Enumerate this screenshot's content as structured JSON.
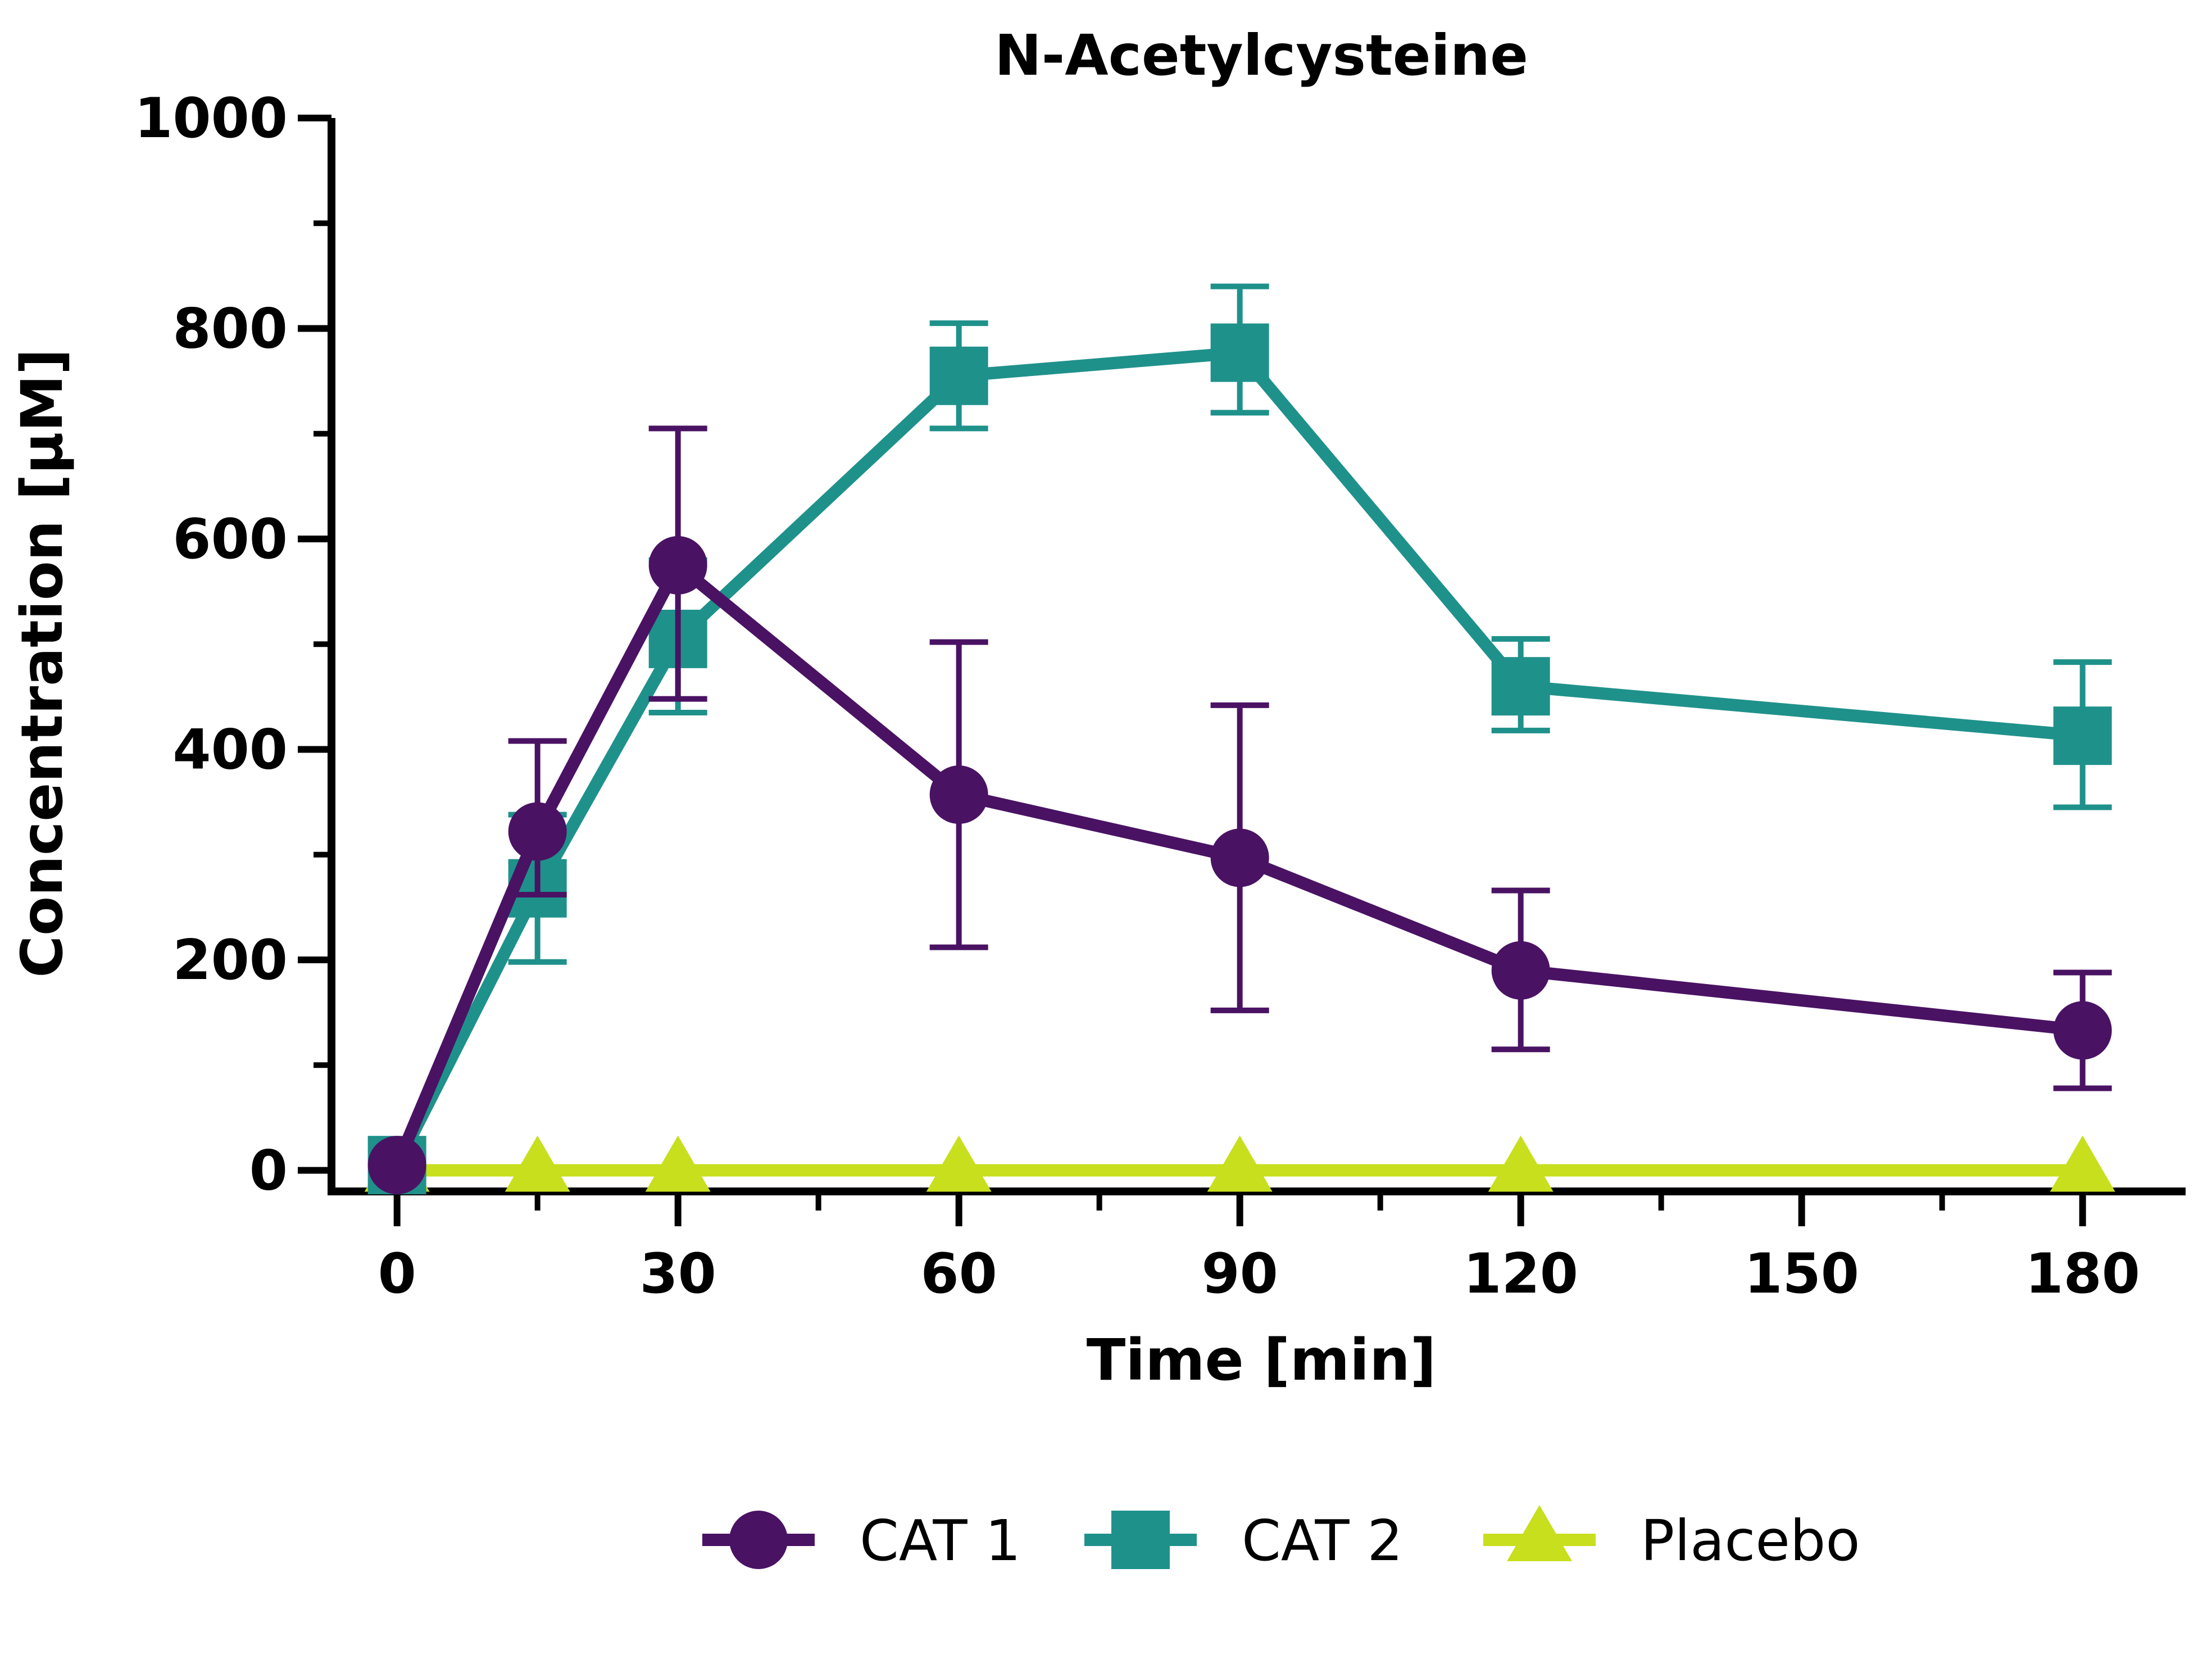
{
  "chart_data": {
    "type": "line",
    "title": "N-Acetylcysteine",
    "xlabel": "Time [min]",
    "ylabel": "Concentration [µM]",
    "xlim": [
      -7,
      191
    ],
    "ylim": [
      -20,
      1000
    ],
    "x_ticks": [
      0,
      30,
      60,
      90,
      120,
      150,
      180
    ],
    "x_minor_ticks": [
      15,
      45,
      75,
      105,
      135,
      165
    ],
    "y_ticks": [
      0,
      200,
      400,
      600,
      800,
      1000
    ],
    "y_minor_ticks": [
      100,
      300,
      500,
      700,
      900
    ],
    "x_tick_labels": [
      "0",
      "30",
      "60",
      "90",
      "120",
      "150",
      "180"
    ],
    "y_tick_labels": [
      "0",
      "200",
      "400",
      "600",
      "800",
      "1000"
    ],
    "grid": false,
    "legend_position": "bottom",
    "series": [
      {
        "name": "CAT 1",
        "color": "#4a1263",
        "marker": "circle",
        "x": [
          0,
          15,
          30,
          60,
          90,
          120,
          180
        ],
        "y": [
          5,
          322,
          575,
          357,
          297,
          190,
          133
        ],
        "error_low": [
          5,
          262,
          448,
          212,
          152,
          115,
          78
        ],
        "error_high": [
          5,
          408,
          705,
          502,
          442,
          266,
          188
        ]
      },
      {
        "name": "CAT 2",
        "color": "#1f918b",
        "marker": "square",
        "x": [
          0,
          15,
          30,
          60,
          90,
          120,
          180
        ],
        "y": [
          5,
          268,
          505,
          755,
          777,
          460,
          413
        ],
        "error_low": [
          5,
          198,
          435,
          705,
          720,
          418,
          345
        ],
        "error_high": [
          5,
          338,
          580,
          805,
          840,
          505,
          483
        ]
      },
      {
        "name": "Placebo",
        "color": "#c7df1d",
        "marker": "triangle",
        "x": [
          0,
          15,
          30,
          60,
          90,
          120,
          180
        ],
        "y": [
          0,
          0,
          0,
          0,
          0,
          0,
          0
        ]
      }
    ]
  }
}
